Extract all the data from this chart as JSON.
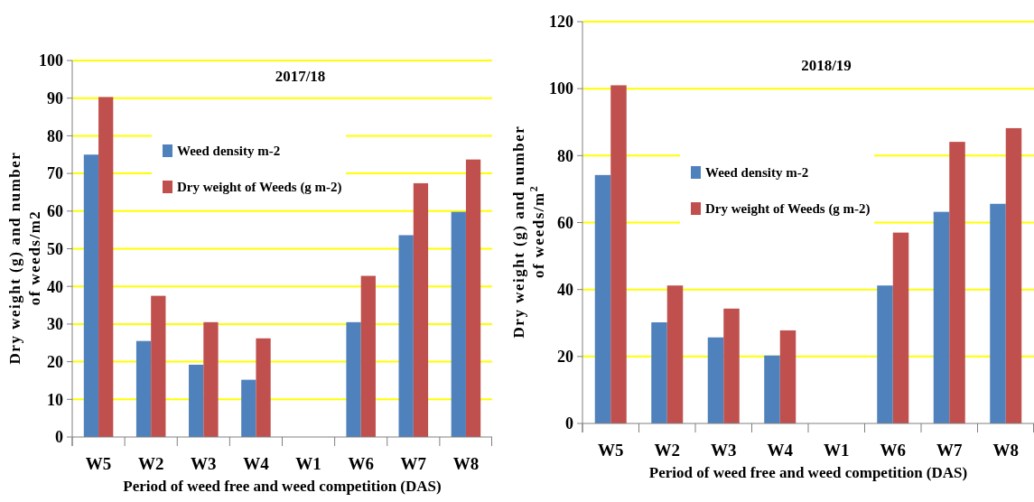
{
  "chart_data": [
    {
      "type": "bar",
      "title": "2017/18",
      "xlabel": "Period of weed free and weed competition (DAS)",
      "ylabel": "Dry weight (g) and number of weeds/m2",
      "categories": [
        "W5",
        "W2",
        "W3",
        "W4",
        "W1",
        "W6",
        "W7",
        "W8"
      ],
      "series": [
        {
          "name": "Weed density m-2",
          "color": "#4f81bd",
          "values": [
            75,
            25.5,
            19.2,
            15.2,
            0,
            30.5,
            53.6,
            59.8
          ]
        },
        {
          "name": "Dry weight of Weeds (g m-2)",
          "color": "#c0504d",
          "values": [
            90.3,
            37.5,
            30.5,
            26.2,
            0,
            42.8,
            67.4,
            73.7
          ]
        }
      ],
      "ylim": [
        0,
        100
      ],
      "yticks": [
        0,
        10,
        20,
        30,
        40,
        50,
        60,
        70,
        80,
        90,
        100
      ],
      "grid": "y",
      "legend": "top"
    },
    {
      "type": "bar",
      "title": "2018/19",
      "xlabel": "Period of weed free and weed competition (DAS)",
      "ylabel": "Dry weight (g) and number of weeds/m$^{2}$",
      "categories": [
        "W5",
        "W2",
        "W3",
        "W4",
        "W1",
        "W6",
        "W7",
        "W8"
      ],
      "series": [
        {
          "name": "Weed density m-2",
          "color": "#4f81bd",
          "values": [
            74.2,
            30.2,
            25.7,
            20.3,
            0,
            41.2,
            63.2,
            65.6
          ]
        },
        {
          "name": "Dry weight of Weeds (g m-2)",
          "color": "#c0504d",
          "values": [
            101,
            41.2,
            34.3,
            27.8,
            0,
            57,
            84.1,
            88.2
          ]
        }
      ],
      "ylim": [
        0,
        120
      ],
      "yticks": [
        0,
        20,
        40,
        60,
        80,
        100,
        120
      ],
      "grid": "y",
      "legend": "top"
    }
  ]
}
